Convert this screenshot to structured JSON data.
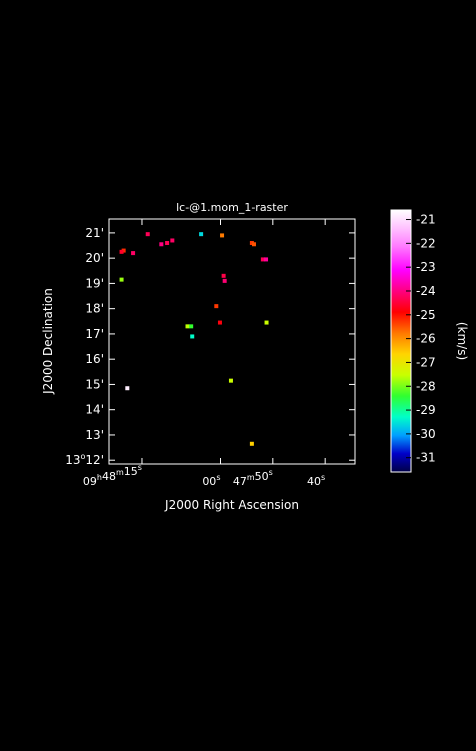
{
  "chart_data": {
    "type": "heatmap",
    "title": "lc-@1.mom_1-raster",
    "xlabel": "J2000 Right Ascension",
    "ylabel": "J2000 Declination",
    "colorbar_label": "(km/s)",
    "colorbar_ticks": [
      "-21",
      "-22",
      "-23",
      "-24",
      "-25",
      "-26",
      "-27",
      "-28",
      "-29",
      "-30",
      "-31"
    ],
    "colorbar_range": [
      -31.6,
      -20.6
    ],
    "x_ticks": [
      {
        "major": "09",
        "h": "h",
        "m_val": "48",
        "m": "m",
        "s_val": "15",
        "s": "s",
        "ra_sec": 495
      },
      {
        "s_val": "00",
        "s": "s",
        "ra_sec": 480
      },
      {
        "m_val": "47",
        "m": "m",
        "s_val": "50",
        "s": "s",
        "ra_sec": 470
      },
      {
        "s_val": "40",
        "s": "s",
        "ra_sec": 460
      }
    ],
    "x_range_ra_sec": [
      501.3,
      454.3
    ],
    "y_ticks": [
      {
        "label": "21'",
        "arcmin": 21
      },
      {
        "label": "20'",
        "arcmin": 20
      },
      {
        "label": "19'",
        "arcmin": 19
      },
      {
        "label": "18'",
        "arcmin": 18
      },
      {
        "label": "17'",
        "arcmin": 17
      },
      {
        "label": "16'",
        "arcmin": 16
      },
      {
        "label": "15'",
        "arcmin": 15
      },
      {
        "label": "14'",
        "arcmin": 14
      },
      {
        "label": "13'",
        "arcmin": 13
      },
      {
        "label_deg": "13",
        "deg": "o",
        "label_min": "12'",
        "arcmin": 12
      }
    ],
    "y_range_arcmin": [
      11.85,
      21.55
    ],
    "pixels": [
      {
        "ra": 498.5,
        "dec": 20.3,
        "v": -25.2
      },
      {
        "ra": 498.9,
        "dec": 20.25,
        "v": -24.6
      },
      {
        "ra": 496.7,
        "dec": 20.2,
        "v": -24.2
      },
      {
        "ra": 493.9,
        "dec": 20.95,
        "v": -24.3
      },
      {
        "ra": 491.3,
        "dec": 20.55,
        "v": -24.0
      },
      {
        "ra": 490.2,
        "dec": 20.6,
        "v": -24.3
      },
      {
        "ra": 489.2,
        "dec": 20.7,
        "v": -24.2
      },
      {
        "ra": 483.7,
        "dec": 20.95,
        "v": -29.6
      },
      {
        "ra": 479.7,
        "dec": 20.9,
        "v": -25.8
      },
      {
        "ra": 479.4,
        "dec": 19.3,
        "v": -24.4
      },
      {
        "ra": 479.2,
        "dec": 19.1,
        "v": -24.1
      },
      {
        "ra": 474.0,
        "dec": 20.6,
        "v": -25.3
      },
      {
        "ra": 473.6,
        "dec": 20.55,
        "v": -25.5
      },
      {
        "ra": 471.9,
        "dec": 19.95,
        "v": -24.3
      },
      {
        "ra": 471.3,
        "dec": 19.95,
        "v": -23.8
      },
      {
        "ra": 471.2,
        "dec": 17.45,
        "v": -27.5
      },
      {
        "ra": 498.9,
        "dec": 19.15,
        "v": -27.8
      },
      {
        "ra": 486.3,
        "dec": 17.3,
        "v": -27.6
      },
      {
        "ra": 485.6,
        "dec": 17.3,
        "v": -28.4
      },
      {
        "ra": 485.4,
        "dec": 16.9,
        "v": -29.3
      },
      {
        "ra": 480.8,
        "dec": 18.1,
        "v": -25.3
      },
      {
        "ra": 480.1,
        "dec": 17.45,
        "v": -24.8
      },
      {
        "ra": 474.0,
        "dec": 12.65,
        "v": -26.6
      },
      {
        "ra": 478.0,
        "dec": 15.15,
        "v": -27.5
      },
      {
        "ra": 497.8,
        "dec": 14.85,
        "v": -20.8
      }
    ]
  }
}
